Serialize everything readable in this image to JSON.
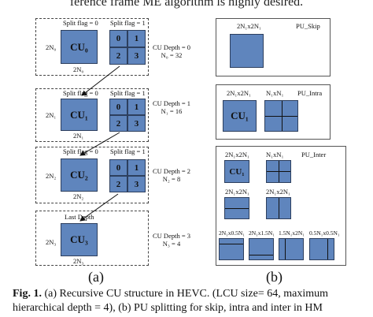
{
  "top_text": "ference frame ME algorithm is highly desired.",
  "panel_a": {
    "levels": [
      {
        "split0_label": "Split flag = 0",
        "split1_label": "Split flag = 1",
        "cu_label": "CU₀",
        "side_label": "2N₀",
        "bottom_label": "2N₀",
        "depth_line1": "CU Depth = 0",
        "depth_line2": "N₀ = 32",
        "quads": [
          "0",
          "1",
          "2",
          "3"
        ]
      },
      {
        "split0_label": "Split flag = 0",
        "split1_label": "Split flag = 1",
        "cu_label": "CU₁",
        "side_label": "2N₁",
        "bottom_label": "2N₁",
        "depth_line1": "CU Depth = 1",
        "depth_line2": "N₁ = 16",
        "quads": [
          "0",
          "1",
          "2",
          "3"
        ]
      },
      {
        "split0_label": "Split flag = 0",
        "split1_label": "Split flag = 1",
        "cu_label": "CU₂",
        "side_label": "2N₂",
        "bottom_label": "2N₂",
        "depth_line1": "CU Depth = 2",
        "depth_line2": "N₂ = 8",
        "quads": [
          "0",
          "1",
          "2",
          "3"
        ]
      },
      {
        "title": "Last Depth",
        "cu_label": "CU₃",
        "side_label": "2N₃",
        "bottom_label": "2N₃",
        "depth_line1": "CU Depth = 3",
        "depth_line2": "N₃ = 4"
      }
    ],
    "sub_label": "(a)"
  },
  "panel_b": {
    "skip": {
      "title": "PU_Skip",
      "label": "2N₁x2N₁"
    },
    "intra": {
      "title": "PU_Intra",
      "label1": "2N₁x2N₁",
      "label2": "N₁xN₁",
      "cu_label": "CU₁"
    },
    "inter": {
      "title": "PU_Inter",
      "row1": {
        "label1": "2N₁x2N₁",
        "label2": "N₁xN₁",
        "cu_label": "CU₁"
      },
      "row2": {
        "label1": "2N₁x2N₁",
        "label2": "2N₁x2N₁"
      },
      "row3": [
        "2N₁x0.5N₁",
        "2N₁x1.5N₁",
        "1.5N₁x2N₁",
        "0.5N₁x0.5N₁"
      ]
    },
    "sub_label": "(b)"
  },
  "caption": {
    "fig_label": "Fig. 1.",
    "line1_rest": " (a) Recursive CU structure in HEVC. (LCU size= 64, maximum",
    "line2": "hierarchical depth = 4), (b) PU splitting for skip, intra and inter in HM"
  },
  "colors": {
    "block_fill": "#5f85bd",
    "block_border": "#2d3f5e"
  }
}
